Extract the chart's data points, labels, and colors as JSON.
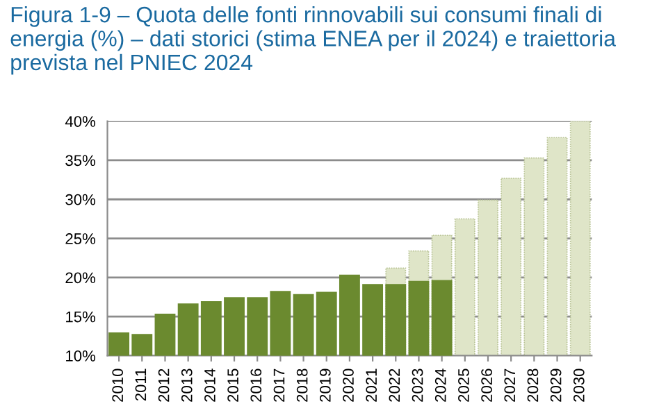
{
  "chart_data": {
    "type": "bar",
    "title": "Figura 1-9 – Quota delle fonti rinnovabili sui consumi finali di energia (%) – dati storici (stima ENEA per il 2024) e traiettoria prevista nel PNIEC 2024",
    "categories": [
      "2010",
      "2011",
      "2012",
      "2013",
      "2014",
      "2015",
      "2016",
      "2017",
      "2018",
      "2019",
      "2020",
      "2021",
      "2022",
      "2023",
      "2024",
      "2025",
      "2026",
      "2027",
      "2028",
      "2029",
      "2030"
    ],
    "series": [
      {
        "color": "#dfe5c8",
        "line_style": "dotted",
        "values": [
          null,
          null,
          null,
          null,
          null,
          null,
          null,
          null,
          null,
          null,
          null,
          null,
          21.2,
          23.4,
          25.4,
          27.5,
          29.9,
          32.7,
          35.3,
          37.9,
          40.0
        ]
      },
      {
        "color": "#6b8a2f",
        "line_style": "solid",
        "values": [
          12.9,
          12.7,
          15.3,
          16.6,
          16.9,
          17.4,
          17.4,
          18.2,
          17.8,
          18.1,
          20.3,
          19.1,
          19.1,
          19.5,
          19.6,
          null,
          null,
          null,
          null,
          null,
          null
        ]
      }
    ],
    "ylim": [
      10,
      40
    ],
    "yticks": [
      {
        "value": 10,
        "label": "10%"
      },
      {
        "value": 15,
        "label": "15%"
      },
      {
        "value": 20,
        "label": "20%"
      },
      {
        "value": 25,
        "label": "25%"
      },
      {
        "value": 30,
        "label": "30%"
      },
      {
        "value": 35,
        "label": "35%"
      },
      {
        "value": 40,
        "label": "40%"
      }
    ],
    "grid": "y",
    "legend": false
  }
}
